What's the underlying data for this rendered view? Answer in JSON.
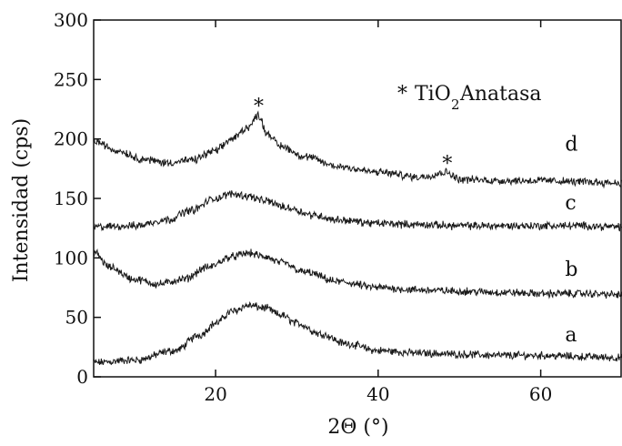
{
  "chart_data": {
    "type": "line",
    "xlabel": "2Θ (°)",
    "ylabel": "Intensidad (cps)",
    "xlim": [
      5,
      70
    ],
    "ylim": [
      0,
      300
    ],
    "x_ticks": [
      20,
      40,
      60
    ],
    "y_ticks": [
      0,
      50,
      100,
      150,
      200,
      250,
      300
    ],
    "grid": false,
    "legend": "none",
    "annotation": {
      "marker": "*",
      "text": "TiO",
      "subscript": "2",
      "suffix": " Anatasa"
    },
    "peak_markers": [
      {
        "label": "*",
        "x": 25.3,
        "y": 228
      },
      {
        "label": "*",
        "x": 48.5,
        "y": 180
      }
    ],
    "series": [
      {
        "label": "a",
        "label_point": [
          63,
          30
        ],
        "x": [
          5,
          10,
          15,
          18,
          20,
          22,
          24,
          26,
          28,
          30,
          33,
          36,
          40,
          45,
          50,
          55,
          60,
          65,
          70
        ],
        "values": [
          12,
          14,
          22,
          35,
          45,
          55,
          60,
          58,
          52,
          45,
          36,
          28,
          22,
          20,
          19,
          18,
          18,
          17,
          16
        ]
      },
      {
        "label": "b",
        "label_point": [
          63,
          85
        ],
        "x": [
          5,
          7,
          10,
          13,
          16,
          19,
          22,
          24,
          26,
          28,
          31,
          35,
          40,
          45,
          50,
          55,
          60,
          65,
          70
        ],
        "values": [
          105,
          92,
          82,
          78,
          82,
          92,
          101,
          104,
          101,
          96,
          88,
          80,
          75,
          73,
          72,
          71,
          70,
          70,
          69
        ]
      },
      {
        "label": "c",
        "label_point": [
          63,
          141
        ],
        "x": [
          5,
          10,
          14,
          17,
          20,
          22,
          24,
          26,
          29,
          32,
          35,
          40,
          45,
          50,
          55,
          60,
          65,
          70
        ],
        "values": [
          126,
          127,
          132,
          140,
          150,
          154,
          152,
          148,
          142,
          136,
          132,
          129,
          128,
          127,
          127,
          127,
          127,
          126
        ]
      },
      {
        "label": "d",
        "label_point": [
          63,
          190
        ],
        "x": [
          5,
          8,
          11,
          14,
          17,
          20,
          22,
          24,
          25.3,
          26.3,
          28,
          31,
          35,
          40,
          45,
          48.5,
          50,
          55,
          60,
          65,
          70
        ],
        "values": [
          198,
          190,
          183,
          180,
          182,
          190,
          200,
          210,
          220,
          205,
          194,
          185,
          177,
          172,
          168,
          172,
          166,
          165,
          165,
          164,
          163
        ]
      }
    ]
  },
  "colors": {
    "line": "#1a1a1a",
    "axis": "#111111",
    "background": "#ffffff"
  }
}
